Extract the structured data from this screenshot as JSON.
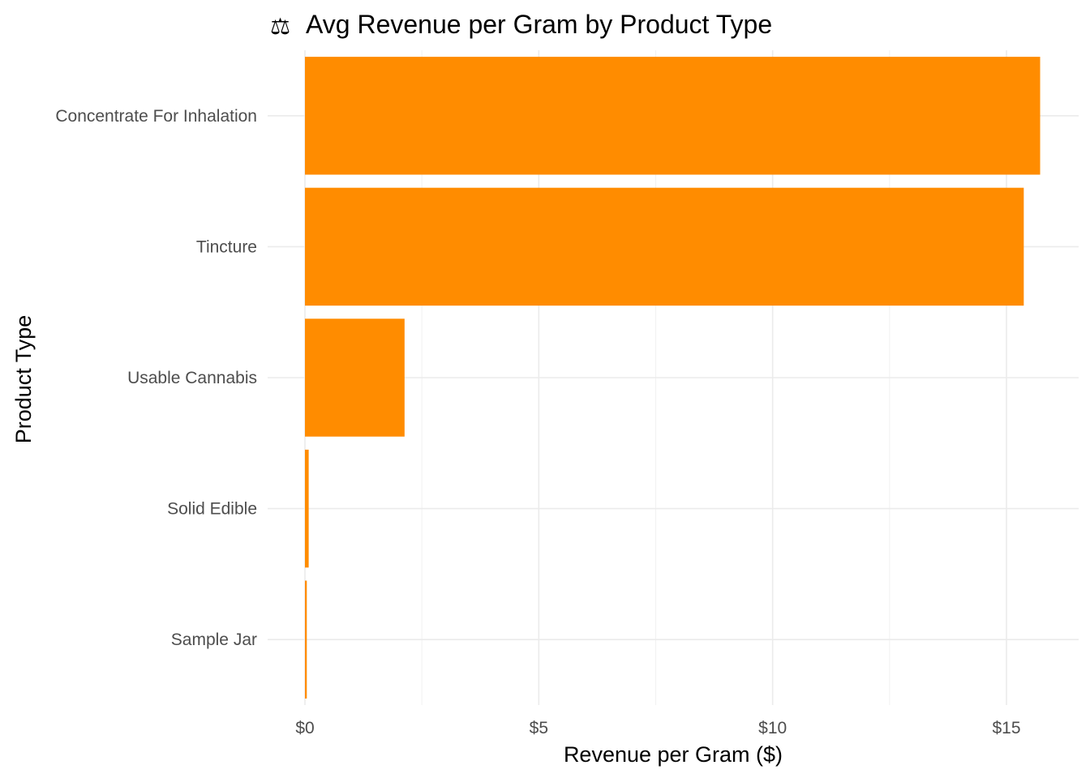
{
  "chart_data": {
    "type": "bar",
    "orientation": "horizontal",
    "title": "Avg Revenue per Gram by Product Type",
    "title_icon": "balance-scale-icon",
    "title_icon_glyph": "⚖",
    "xlabel": "Revenue per Gram ($)",
    "ylabel": "Product Type",
    "xlim": [
      0,
      16.5
    ],
    "x_ticks": [
      0,
      5,
      10,
      15
    ],
    "x_tick_labels": [
      "$0",
      "$5",
      "$10",
      "$15"
    ],
    "x_minor_ticks": [
      2.5,
      7.5,
      12.5
    ],
    "categories": [
      "Concentrate For Inhalation",
      "Tincture",
      "Usable Cannabis",
      "Solid Edible",
      "Sample Jar"
    ],
    "values": [
      15.72,
      15.37,
      2.13,
      0.08,
      0.04
    ],
    "bar_color": "#FF8C00",
    "grid": true,
    "legend": "none"
  }
}
